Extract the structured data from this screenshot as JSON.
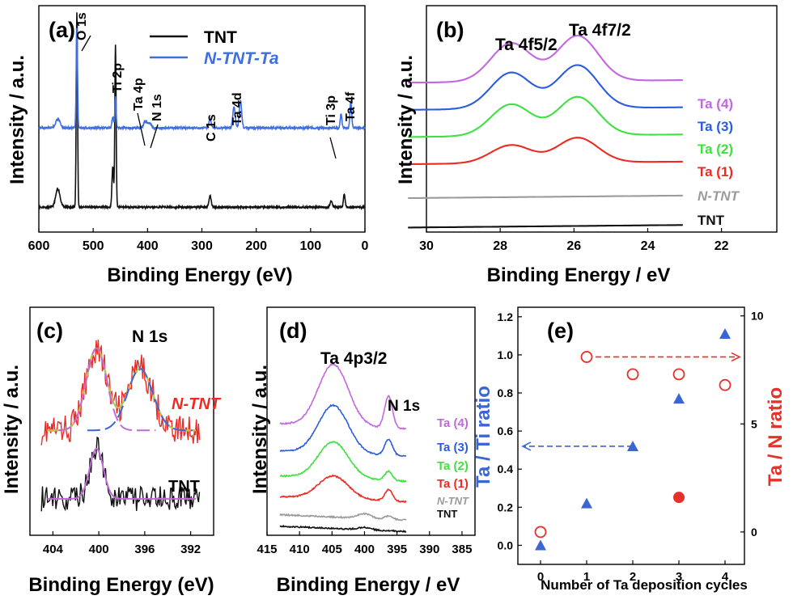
{
  "colors": {
    "black": "#111111",
    "blue": "#3d6fe0",
    "gray": "#9b9b9b",
    "red": "#ee2a24",
    "green": "#3fe03f",
    "violet": "#c267e0",
    "blue3": "#2b5ce0",
    "fitGreen": "#99d24a",
    "fitOrange": "#f2a35c",
    "fitViolet": "#c06ad8",
    "fitBlue": "#3b66d8",
    "tiBlue": "#3a66d4",
    "nRed": "#e8302a"
  },
  "chart_data": [
    {
      "panel": "a",
      "type": "line",
      "panel_label": "(a)",
      "xlabel": "Binding Energy (eV)",
      "ylabel": "Intensity / a.u.",
      "xlim": [
        600,
        0
      ],
      "xticks": [
        "600",
        "500",
        "400",
        "300",
        "200",
        "100",
        "0"
      ],
      "series": [
        {
          "name": "TNT",
          "color": "black",
          "baseline": 0.11,
          "peaks": [
            [
              530,
              0.86,
              1.2
            ],
            [
              459,
              0.72,
              1.2
            ],
            [
              464,
              0.18,
              1.5
            ],
            [
              565,
              0.08,
              4
            ],
            [
              285,
              0.05,
              2
            ],
            [
              38,
              0.06,
              1.5
            ],
            [
              62,
              0.03,
              2
            ]
          ]
        },
        {
          "name": "N-TNT-Ta",
          "color": "blue",
          "baseline": 0.46,
          "peaks": [
            [
              530,
              0.44,
              1.2
            ],
            [
              459,
              0.14,
              1.2
            ],
            [
              464,
              0.05,
              1.5
            ],
            [
              404,
              0.03,
              3
            ],
            [
              396,
              0.02,
              3
            ],
            [
              285,
              0.04,
              2
            ],
            [
              241,
              0.09,
              2.2
            ],
            [
              229,
              0.12,
              2.2
            ],
            [
              44,
              0.06,
              1.5
            ],
            [
              26,
              0.12,
              1.6
            ],
            [
              565,
              0.04,
              4
            ]
          ]
        }
      ],
      "legend": [
        "TNT",
        "N-TNT-Ta"
      ],
      "annotations": [
        "O 1s",
        "Ti 2p",
        "Ta 4p",
        "N 1s",
        "C 1s",
        "Ta 4d",
        "Ti 3p",
        "Ta 4f"
      ]
    },
    {
      "panel": "b",
      "type": "line",
      "panel_label": "(b)",
      "xlabel": "Binding Energy / eV",
      "ylabel": "Intensity / a.u.",
      "xlim": [
        30,
        20.5
      ],
      "xticks": [
        "30",
        "28",
        "26",
        "24",
        "22"
      ],
      "peak_labels": [
        "Ta 4f5/2",
        "Ta 4f7/2"
      ],
      "series": [
        {
          "name": "TNT",
          "color": "black",
          "baseline": 0.02,
          "peaks": []
        },
        {
          "name": "N-TNT",
          "color": "gray",
          "baseline": 0.15,
          "peaks": []
        },
        {
          "name": "Ta (1)",
          "color": "red",
          "baseline": 0.3,
          "peaks": [
            [
              27.7,
              0.08,
              0.55
            ],
            [
              25.9,
              0.11,
              0.55
            ]
          ]
        },
        {
          "name": "Ta (2)",
          "color": "green",
          "baseline": 0.42,
          "peaks": [
            [
              27.7,
              0.14,
              0.55
            ],
            [
              25.9,
              0.17,
              0.55
            ]
          ]
        },
        {
          "name": "Ta (3)",
          "color": "blue3",
          "baseline": 0.54,
          "peaks": [
            [
              27.7,
              0.16,
              0.55
            ],
            [
              25.9,
              0.19,
              0.55
            ]
          ]
        },
        {
          "name": "Ta (4)",
          "color": "violet",
          "baseline": 0.66,
          "peaks": [
            [
              27.7,
              0.17,
              0.55
            ],
            [
              25.9,
              0.2,
              0.55
            ]
          ]
        }
      ]
    },
    {
      "panel": "c",
      "type": "line",
      "panel_label": "(c)",
      "xlabel": "Binding Energy (eV)",
      "ylabel": "Intensity / a.u.",
      "xlim": [
        406,
        390
      ],
      "xticks": [
        "404",
        "400",
        "396",
        "392"
      ],
      "title": "N 1s",
      "series": [
        {
          "name": "N-TNT",
          "color": "red",
          "baseline": 0.46,
          "peaks": [
            [
              400.2,
              0.36,
              0.9
            ],
            [
              396.4,
              0.27,
              1.1
            ]
          ]
        },
        {
          "name": "TNT",
          "color": "black",
          "baseline": 0.16,
          "peaks": [
            [
              400.2,
              0.22,
              0.6
            ]
          ]
        }
      ],
      "labels": [
        "N-TNT",
        "TNT"
      ]
    },
    {
      "panel": "d",
      "type": "line",
      "panel_label": "(d)",
      "xlabel": "Binding Energy / eV",
      "ylabel": "Intensity / a.u.",
      "xlim": [
        415,
        383
      ],
      "xticks": [
        "415",
        "410",
        "405",
        "400",
        "395",
        "390",
        "385"
      ],
      "peak_labels": [
        "Ta 4p3/2",
        "N 1s"
      ],
      "series": [
        {
          "name": "TNT",
          "color": "black",
          "baseline": 0.04,
          "peaks": [
            [
              400,
              0.01,
              1
            ]
          ]
        },
        {
          "name": "N-TNT",
          "color": "gray",
          "baseline": 0.09,
          "peaks": [
            [
              400,
              0.02,
              1
            ],
            [
              396.3,
              0.015,
              0.6
            ]
          ]
        },
        {
          "name": "Ta (1)",
          "color": "red",
          "baseline": 0.17,
          "peaks": [
            [
              404.8,
              0.1,
              2.3
            ],
            [
              396.3,
              0.05,
              0.6
            ]
          ]
        },
        {
          "name": "Ta (2)",
          "color": "green",
          "baseline": 0.26,
          "peaks": [
            [
              404.8,
              0.16,
              2.3
            ],
            [
              396.3,
              0.04,
              0.6
            ]
          ]
        },
        {
          "name": "Ta (3)",
          "color": "blue3",
          "baseline": 0.37,
          "peaks": [
            [
              404.8,
              0.21,
              2.3
            ],
            [
              396.3,
              0.07,
              0.6
            ]
          ]
        },
        {
          "name": "Ta (4)",
          "color": "violet",
          "baseline": 0.49,
          "peaks": [
            [
              404.8,
              0.27,
              2.3
            ],
            [
              396.3,
              0.14,
              0.6
            ]
          ]
        }
      ]
    },
    {
      "panel": "e",
      "type": "scatter",
      "panel_label": "(e)",
      "xlabel": "Number of Ta deposition cycles",
      "ylabel": "Ta / Ti ratio",
      "y2label": "Ta / N ratio",
      "categories": [
        "0",
        "1",
        "2",
        "3",
        "4"
      ],
      "ylim": [
        -0.1,
        1.25
      ],
      "y2lim": [
        -1.5,
        10.4
      ],
      "yticks": [
        "0.0",
        "0.2",
        "0.4",
        "0.6",
        "0.8",
        "1.0",
        "1.2"
      ],
      "y2ticks": [
        "0",
        "5",
        "10"
      ],
      "series": [
        {
          "name": "Ta / Ti ratio",
          "axis": "left",
          "marker": "triangle",
          "x": [
            0,
            1,
            2,
            3,
            4
          ],
          "values": [
            0.0,
            0.22,
            0.52,
            0.77,
            1.11
          ]
        },
        {
          "name": "Ta / N ratio",
          "axis": "right",
          "marker": "open-circle",
          "x": [
            0,
            1,
            2,
            3,
            4
          ],
          "values": [
            0.0,
            8.1,
            7.3,
            7.3,
            6.8
          ]
        },
        {
          "name": "Ta / N ratio (filled)",
          "axis": "right",
          "marker": "filled-circle",
          "x": [
            3
          ],
          "values": [
            1.6
          ]
        }
      ]
    }
  ]
}
